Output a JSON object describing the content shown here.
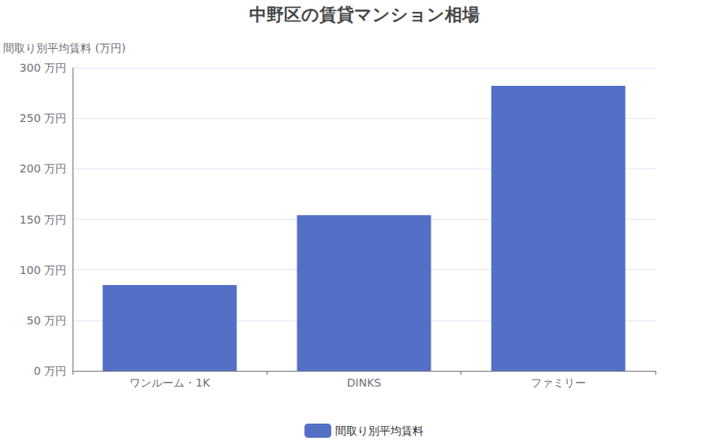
{
  "chart_data": {
    "type": "bar",
    "title": "中野区の賃貸マンション相場",
    "y_label": "間取り別平均賃料 (万円)",
    "categories": [
      "ワンルーム・1K",
      "DINKS",
      "ファミリー"
    ],
    "series": [
      {
        "name": "間取り別平均賃料",
        "color": "#5470c6",
        "values": [
          85,
          154,
          282
        ]
      }
    ],
    "ylim": [
      0,
      300
    ],
    "yticks": [
      {
        "value": 0,
        "label": "0 万円"
      },
      {
        "value": 50,
        "label": "50 万円"
      },
      {
        "value": 100,
        "label": "100 万円"
      },
      {
        "value": 150,
        "label": "150 万円"
      },
      {
        "value": 200,
        "label": "200 万円"
      },
      {
        "value": 250,
        "label": "250 万円"
      },
      {
        "value": 300,
        "label": "300 万円"
      }
    ],
    "grid": true,
    "legend": "bottom"
  }
}
